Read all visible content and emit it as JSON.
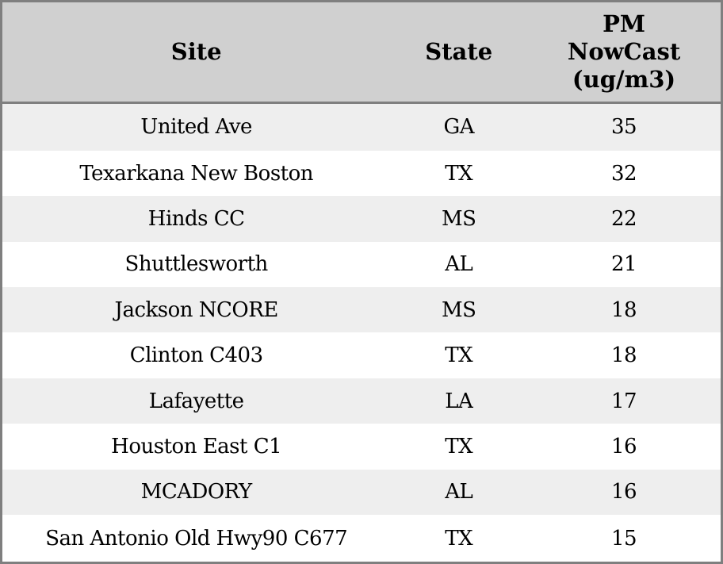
{
  "colors": {
    "header_bg": "#d0d0d0",
    "row_alt_bg": "#eeeeee",
    "row_bg": "#ffffff",
    "border": "#7f7f7f",
    "text": "#000000"
  },
  "table": {
    "headers": {
      "site": "Site",
      "state": "State",
      "pm": "PM\nNowCast\n(ug/m3)"
    },
    "rows": [
      {
        "site": "United Ave",
        "state": "GA",
        "value": "35"
      },
      {
        "site": "Texarkana New Boston",
        "state": "TX",
        "value": "32"
      },
      {
        "site": "Hinds CC",
        "state": "MS",
        "value": "22"
      },
      {
        "site": "Shuttlesworth",
        "state": "AL",
        "value": "21"
      },
      {
        "site": "Jackson NCORE",
        "state": "MS",
        "value": "18"
      },
      {
        "site": "Clinton C403",
        "state": "TX",
        "value": "18"
      },
      {
        "site": "Lafayette",
        "state": "LA",
        "value": "17"
      },
      {
        "site": "Houston East C1",
        "state": "TX",
        "value": "16"
      },
      {
        "site": "MCADORY",
        "state": "AL",
        "value": "16"
      },
      {
        "site": "San Antonio Old Hwy90 C677",
        "state": "TX",
        "value": "15"
      }
    ]
  },
  "chart_data": {
    "type": "table",
    "title": "",
    "columns": [
      "Site",
      "State",
      "PM NowCast (ug/m3)"
    ],
    "rows": [
      [
        "United Ave",
        "GA",
        35
      ],
      [
        "Texarkana New Boston",
        "TX",
        32
      ],
      [
        "Hinds CC",
        "MS",
        22
      ],
      [
        "Shuttlesworth",
        "AL",
        21
      ],
      [
        "Jackson NCORE",
        "MS",
        18
      ],
      [
        "Clinton C403",
        "TX",
        18
      ],
      [
        "Lafayette",
        "LA",
        17
      ],
      [
        "Houston East C1",
        "TX",
        16
      ],
      [
        "MCADORY",
        "AL",
        16
      ],
      [
        "San Antonio Old Hwy90 C677",
        "TX",
        15
      ]
    ],
    "layout": {
      "header_shaded": true,
      "alternating_rows": true,
      "all_cells_centered": true
    }
  }
}
